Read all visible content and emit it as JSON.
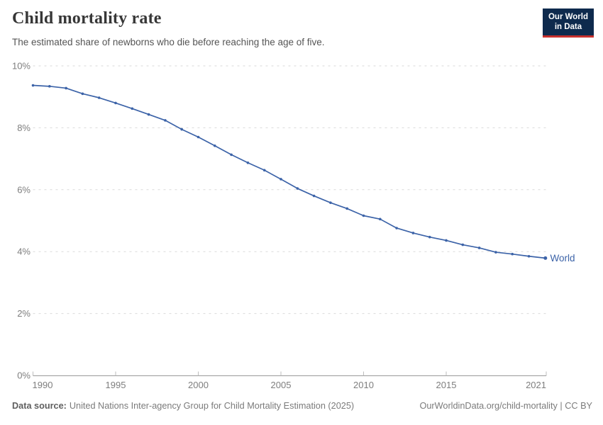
{
  "header": {
    "title": "Child mortality rate",
    "subtitle": "The estimated share of newborns who die before reaching the age of five."
  },
  "logo": {
    "line1": "Our World",
    "line2": "in Data",
    "bg_color": "#0e2a4d",
    "accent_color": "#c8302d"
  },
  "footer": {
    "source_label": "Data source:",
    "source_text": "United Nations Inter-agency Group for Child Mortality Estimation (2025)",
    "right_text": "OurWorldinData.org/child-mortality | CC BY"
  },
  "colors": {
    "series_blue": "#3c63a8",
    "gridline": "#dadada",
    "axis": "#9a9a9a",
    "tick": "#bdbdbd",
    "tick_label": "#7e7e7e",
    "title_text": "#373737",
    "subtitle_text": "#555555"
  },
  "chart_data": {
    "type": "line",
    "title": "Child mortality rate",
    "subtitle": "The estimated share of newborns who die before reaching the age of five.",
    "xlabel": "",
    "ylabel": "",
    "xlim": [
      1990,
      2021
    ],
    "ylim": [
      0,
      10
    ],
    "grid": "horizontal-dashed",
    "legend_position": "end-of-line",
    "x": [
      1990,
      1991,
      1992,
      1993,
      1994,
      1995,
      1996,
      1997,
      1998,
      1999,
      2000,
      2001,
      2002,
      2003,
      2004,
      2005,
      2006,
      2007,
      2008,
      2009,
      2010,
      2011,
      2012,
      2013,
      2014,
      2015,
      2016,
      2017,
      2018,
      2019,
      2020,
      2021
    ],
    "series": [
      {
        "name": "World",
        "color": "#3c63a8",
        "unit": "%",
        "values": [
          9.37,
          9.34,
          9.28,
          9.1,
          8.97,
          8.8,
          8.62,
          8.43,
          8.24,
          7.95,
          7.7,
          7.42,
          7.13,
          6.87,
          6.63,
          6.34,
          6.04,
          5.8,
          5.58,
          5.39,
          5.16,
          5.05,
          4.76,
          4.6,
          4.47,
          4.36,
          4.22,
          4.12,
          3.98,
          3.92,
          3.85,
          3.79
        ]
      }
    ],
    "yticks": [
      {
        "value": 0,
        "label": "0%"
      },
      {
        "value": 2,
        "label": "2%"
      },
      {
        "value": 4,
        "label": "4%"
      },
      {
        "value": 6,
        "label": "6%"
      },
      {
        "value": 8,
        "label": "8%"
      },
      {
        "value": 10,
        "label": "10%"
      }
    ],
    "xticks": [
      {
        "value": 1990,
        "label": "1990"
      },
      {
        "value": 1995,
        "label": "1995"
      },
      {
        "value": 2000,
        "label": "2000"
      },
      {
        "value": 2005,
        "label": "2005"
      },
      {
        "value": 2010,
        "label": "2010"
      },
      {
        "value": 2015,
        "label": "2015"
      },
      {
        "value": 2021,
        "label": "2021"
      }
    ]
  }
}
